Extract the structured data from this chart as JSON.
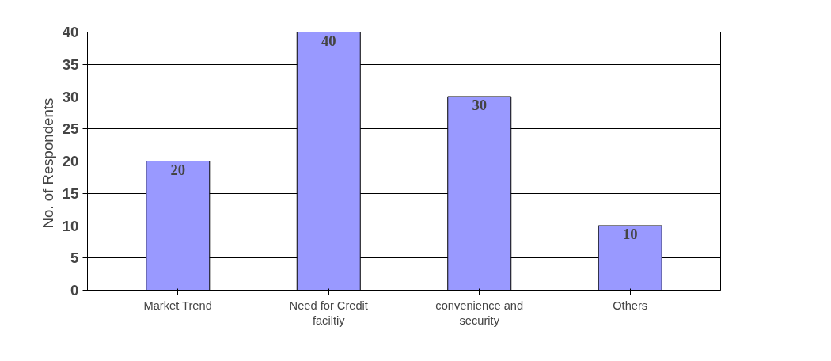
{
  "chart_data": {
    "type": "bar",
    "ylabel": "No. of  Respondents",
    "categories": [
      "Market Trend",
      "Need for Credit faciltiy",
      "convenience and security",
      "Others"
    ],
    "values": [
      20,
      40,
      30,
      10
    ],
    "color": "#9999ff",
    "ylim": [
      0,
      40
    ],
    "yticks": [
      0,
      5,
      10,
      15,
      20,
      25,
      30,
      35,
      40
    ],
    "grid": "y",
    "data_labels": true
  }
}
